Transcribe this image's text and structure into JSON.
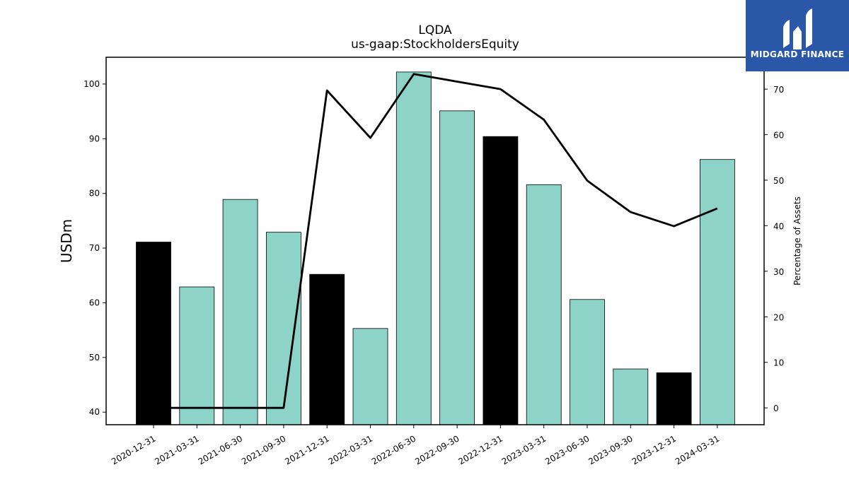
{
  "chart_data": {
    "type": "bar",
    "title": "LQDA",
    "subtitle": "us-gaap:StockholdersEquity",
    "ylabel": "USDm",
    "y2label": "Percentage of Assets",
    "categories": [
      "2020-12-31",
      "2021-03-31",
      "2021-06-30",
      "2021-09-30",
      "2021-12-31",
      "2022-03-31",
      "2022-06-30",
      "2022-09-30",
      "2022-12-31",
      "2023-03-31",
      "2023-06-30",
      "2023-09-30",
      "2023-12-31",
      "2024-03-31"
    ],
    "series": [
      {
        "values": [
          71.1,
          62.9,
          78.9,
          72.9,
          65.2,
          55.3,
          102.2,
          95.1,
          90.4,
          81.6,
          60.6,
          47.9,
          47.2,
          86.2
        ],
        "colors": [
          "#000000",
          "#8dd3c7",
          "#8dd3c7",
          "#8dd3c7",
          "#000000",
          "#8dd3c7",
          "#8dd3c7",
          "#8dd3c7",
          "#000000",
          "#8dd3c7",
          "#8dd3c7",
          "#8dd3c7",
          "#000000",
          "#8dd3c7"
        ],
        "axis": "left"
      },
      {
        "type": "line",
        "axis": "right",
        "color": "#000000",
        "values": [
          0.0,
          0.0,
          0.0,
          0.0,
          69.7,
          59.3,
          73.3,
          null,
          70.0,
          63.3,
          49.9,
          43.0,
          39.9,
          43.8
        ]
      }
    ],
    "ylim": [
      37.7,
      104.9
    ],
    "y2lim": [
      -3.7,
      77.0
    ],
    "yticks": [
      40,
      50,
      60,
      70,
      80,
      90,
      100
    ],
    "y2ticks": [
      0,
      10,
      20,
      30,
      40,
      50,
      60,
      70
    ],
    "grid": false,
    "legend": "none"
  },
  "logo": {
    "text": "MIDGARD FINANCE",
    "background": "#2b57a8"
  }
}
